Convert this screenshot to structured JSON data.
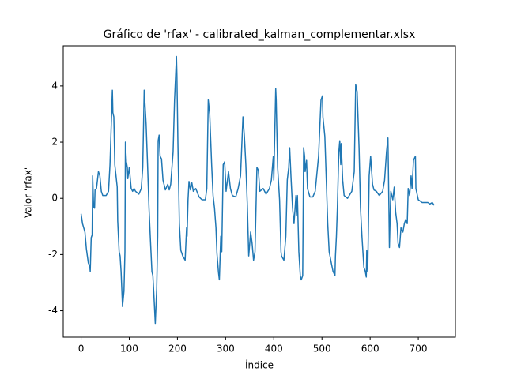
{
  "chart_data": {
    "type": "line",
    "title": "Gráfico de 'rfax' - calibrated_kalman_complementar.xlsx",
    "x_label": "Índice",
    "y_label": "Valor 'rfax'",
    "xlim": [
      -37,
      777
    ],
    "ylim": [
      -4.94,
      5.43
    ],
    "xticks": [
      0,
      100,
      200,
      300,
      400,
      500,
      600,
      700
    ],
    "yticks": [
      -4,
      -2,
      0,
      2,
      4
    ],
    "series": [
      {
        "color": "#1f77b4",
        "x": [
          0,
          3,
          8,
          11,
          15,
          18,
          19,
          21,
          23,
          24,
          26,
          28,
          29,
          32,
          36,
          39,
          42,
          45,
          52,
          57,
          60,
          65,
          66,
          68,
          70,
          75,
          76,
          79,
          81,
          83,
          86,
          89,
          91,
          92,
          94,
          96,
          97,
          100,
          104,
          107,
          110,
          113,
          120,
          125,
          128,
          131,
          135,
          138,
          141,
          144,
          147,
          149,
          151,
          154,
          157,
          159,
          160,
          162,
          164,
          167,
          170,
          175,
          180,
          183,
          186,
          191,
          194,
          198,
          199,
          201,
          204,
          207,
          211,
          216,
          219,
          220,
          222,
          224,
          227,
          230,
          233,
          238,
          245,
          251,
          258,
          261,
          264,
          267,
          271,
          274,
          277,
          280,
          282,
          285,
          287,
          290,
          292,
          295,
          298,
          301,
          306,
          310,
          314,
          321,
          326,
          331,
          336,
          339,
          342,
          345,
          348,
          352,
          355,
          358,
          361,
          365,
          368,
          371,
          378,
          384,
          391,
          395,
          399,
          400,
          404,
          405,
          408,
          412,
          415,
          416,
          421,
          425,
          428,
          431,
          433,
          436,
          439,
          442,
          446,
          447,
          449,
          452,
          455,
          457,
          460,
          462,
          464,
          465,
          468,
          470,
          475,
          481,
          486,
          493,
          498,
          501,
          502,
          506,
          509,
          512,
          515,
          520,
          523,
          527,
          528,
          530,
          532,
          535,
          537,
          539,
          540,
          543,
          546,
          553,
          562,
          567,
          570,
          573,
          577,
          580,
          583,
          587,
          590,
          592,
          593,
          595,
          598,
          601,
          605,
          608,
          613,
          619,
          626,
          630,
          634,
          637,
          639,
          640,
          642,
          643,
          647,
          650,
          653,
          656,
          658,
          661,
          664,
          668,
          671,
          674,
          677,
          679,
          682,
          685,
          687,
          690,
          694,
          695,
          700,
          708,
          720,
          724,
          729,
          733
        ],
        "values": [
          -0.55,
          -0.9,
          -1.2,
          -1.8,
          -2.3,
          -2.4,
          -2.6,
          -1.4,
          -1.3,
          0.8,
          -0.3,
          -0.35,
          0.3,
          0.35,
          0.95,
          0.8,
          0.25,
          0.1,
          0.1,
          0.25,
          1.2,
          3.85,
          3.05,
          2.9,
          1.2,
          0.4,
          -0.8,
          -1.9,
          -2.05,
          -2.6,
          -3.85,
          -3.3,
          -1.9,
          2.0,
          1.3,
          1.1,
          0.7,
          1.1,
          0.35,
          0.25,
          0.35,
          0.25,
          0.15,
          0.35,
          1.1,
          3.85,
          2.65,
          1.2,
          -0.35,
          -1.5,
          -2.6,
          -2.75,
          -3.4,
          -4.45,
          -3.2,
          -1.35,
          2.05,
          2.25,
          1.5,
          1.4,
          0.65,
          0.3,
          0.5,
          0.3,
          0.5,
          1.65,
          3.5,
          5.05,
          4.35,
          1.95,
          -0.9,
          -1.85,
          -2.05,
          -2.2,
          -1.05,
          -1.35,
          -0.05,
          0.6,
          0.3,
          0.55,
          0.25,
          0.35,
          0.05,
          -0.05,
          -0.05,
          0.35,
          3.5,
          3.0,
          1.2,
          0.1,
          -0.35,
          -1.05,
          -1.95,
          -2.6,
          -2.9,
          -1.35,
          -1.9,
          1.2,
          1.3,
          0.25,
          0.95,
          0.35,
          0.1,
          0.05,
          0.35,
          0.8,
          2.9,
          2.2,
          1.2,
          -0.2,
          -2.05,
          -1.2,
          -1.6,
          -2.2,
          -1.9,
          1.1,
          1.0,
          0.25,
          0.35,
          0.15,
          0.35,
          0.65,
          1.5,
          0.65,
          3.9,
          3.5,
          1.1,
          -0.05,
          -1.9,
          -2.05,
          -2.2,
          -1.35,
          0.65,
          1.1,
          1.8,
          0.65,
          -0.35,
          -0.9,
          0.1,
          -0.6,
          0.1,
          -1.9,
          -2.75,
          -2.9,
          -2.75,
          1.8,
          1.5,
          0.95,
          1.35,
          0.35,
          0.05,
          0.05,
          0.25,
          1.5,
          3.5,
          3.65,
          2.9,
          2.2,
          0.65,
          -0.9,
          -1.9,
          -2.35,
          -2.6,
          -2.75,
          -2.05,
          -1.35,
          -0.35,
          1.65,
          2.05,
          1.2,
          1.95,
          0.65,
          0.1,
          0.0,
          0.25,
          0.95,
          4.05,
          3.8,
          1.8,
          -0.35,
          -1.35,
          -2.45,
          -2.6,
          -2.8,
          -1.85,
          -2.6,
          0.8,
          1.5,
          0.5,
          0.3,
          0.25,
          0.1,
          0.25,
          0.65,
          1.65,
          2.15,
          -0.35,
          -1.75,
          -0.35,
          0.25,
          -0.05,
          0.4,
          -0.5,
          -0.9,
          -1.6,
          -1.75,
          -1.05,
          -1.2,
          -0.9,
          -0.75,
          -0.9,
          0.35,
          0.1,
          0.8,
          0.35,
          1.35,
          1.5,
          0.35,
          -0.05,
          -0.15,
          -0.15,
          -0.2,
          -0.15,
          -0.25
        ]
      }
    ]
  }
}
